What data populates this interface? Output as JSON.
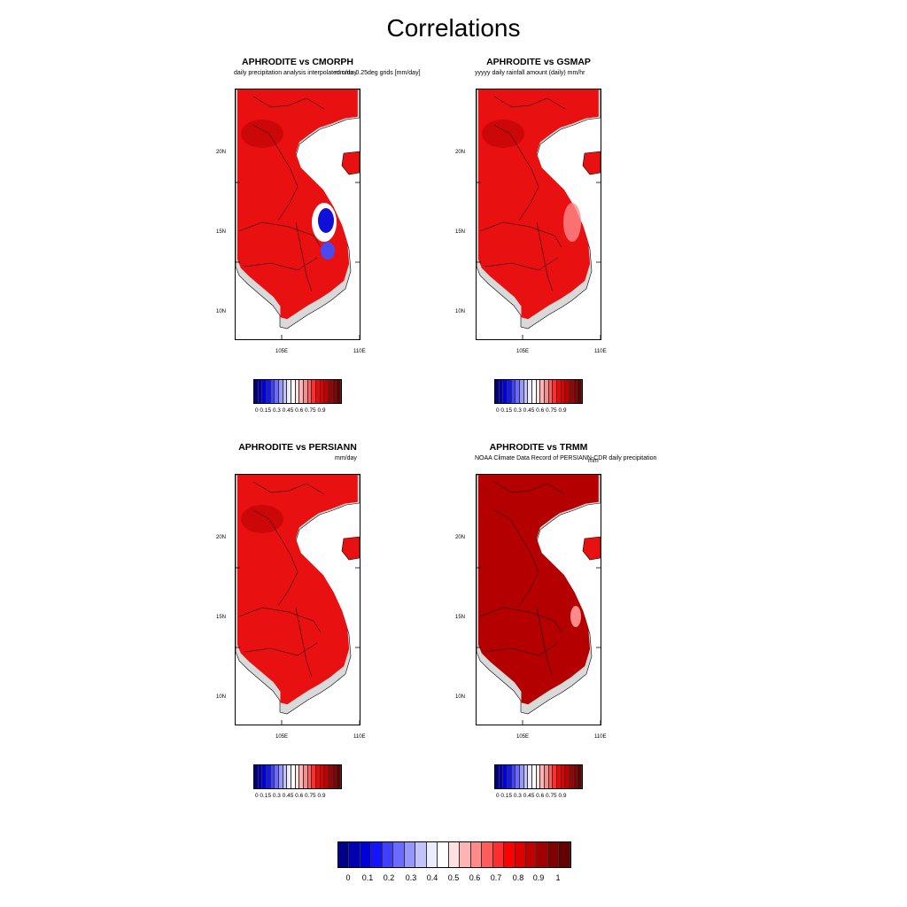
{
  "title": "Correlations",
  "panels": [
    {
      "title": "APHRODITE vs CMORPH",
      "left_sub": "daily precipitation analysis interpolated onto 0.25deg grids [mm/day]",
      "right_sub": "mm/day"
    },
    {
      "title": "APHRODITE vs GSMAP",
      "left_sub": "yyyyy daily rainfall amount (daily) mm/hr",
      "right_sub": ""
    },
    {
      "title": "APHRODITE vs PERSIANN",
      "left_sub": "",
      "right_sub": "mm/day"
    },
    {
      "title": "APHRODITE vs TRMM",
      "left_sub": "NOAA Climate Data Record of PERSIANN-CDR daily precipitation",
      "right_sub": "mm"
    }
  ],
  "axes": {
    "lat_ticks": [
      "20N",
      "15N",
      "10N"
    ],
    "lon_ticks": [
      "105E",
      "110E"
    ]
  },
  "small_colorbar_labels": "0  0.15 0.3 0.45 0.6 0.75 0.9",
  "big_colorbar_labels": [
    "0",
    "0.1",
    "0.2",
    "0.3",
    "0.4",
    "0.5",
    "0.6",
    "0.7",
    "0.8",
    "0.9",
    "1"
  ],
  "colors": {
    "scale": [
      "#00008a",
      "#0000b0",
      "#0000d8",
      "#1414ff",
      "#4040ff",
      "#6b6bff",
      "#9696ff",
      "#c2c2ff",
      "#ececff",
      "#ffffff",
      "#ffe0e0",
      "#ffb3b3",
      "#ff8a8a",
      "#ff5c5c",
      "#ff2e2e",
      "#ff0000",
      "#e00000",
      "#c00000",
      "#a00000",
      "#800000",
      "#660000"
    ],
    "land_fill": "#d9d9d9",
    "map_red": "#e81010",
    "map_dark_red": "#b50000"
  }
}
